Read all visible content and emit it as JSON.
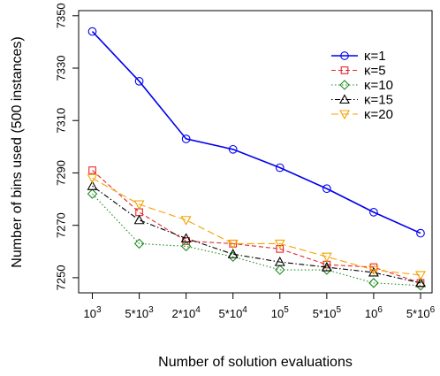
{
  "chart_data": {
    "type": "line",
    "title": "",
    "xlabel": "Number of solution evaluations",
    "ylabel": "Number of bins used (500 instances)",
    "categories": [
      {
        "base": "10",
        "exp": "3"
      },
      {
        "base": "5*10",
        "exp": "3"
      },
      {
        "base": "2*10",
        "exp": "4"
      },
      {
        "base": "5*10",
        "exp": "4"
      },
      {
        "base": "10",
        "exp": "5"
      },
      {
        "base": "5*10",
        "exp": "5"
      },
      {
        "base": "10",
        "exp": "6"
      },
      {
        "base": "5*10",
        "exp": "6"
      }
    ],
    "yticks": [
      7250,
      7270,
      7290,
      7310,
      7330,
      7350
    ],
    "ylim": [
      7245,
      7355
    ],
    "grid": false,
    "legend_position": "top-right",
    "series": [
      {
        "name": "κ=1",
        "color": "#0000ee",
        "marker": "circle",
        "dash": "solid",
        "values": [
          7344,
          7325,
          7303,
          7299,
          7292,
          7284,
          7275,
          7267
        ]
      },
      {
        "name": "κ=5",
        "color": "#e8262b",
        "marker": "square",
        "dash": "dashed",
        "values": [
          7291,
          7275,
          7264,
          7263,
          7261,
          7255,
          7254,
          7248
        ]
      },
      {
        "name": "κ=10",
        "color": "#1e8b1e",
        "marker": "diamond",
        "dash": "dotted",
        "values": [
          7282,
          7263,
          7262,
          7258,
          7253,
          7253,
          7248,
          7247
        ]
      },
      {
        "name": "κ=15",
        "color": "#000000",
        "marker": "triangle-up",
        "dash": "dotdash",
        "values": [
          7285,
          7272,
          7265,
          7259,
          7256,
          7254,
          7252,
          7248
        ]
      },
      {
        "name": "κ=20",
        "color": "#f5a300",
        "marker": "triangle-down",
        "dash": "longdash",
        "values": [
          7288,
          7278,
          7272,
          7263,
          7263,
          7258,
          7253,
          7251
        ]
      }
    ]
  }
}
